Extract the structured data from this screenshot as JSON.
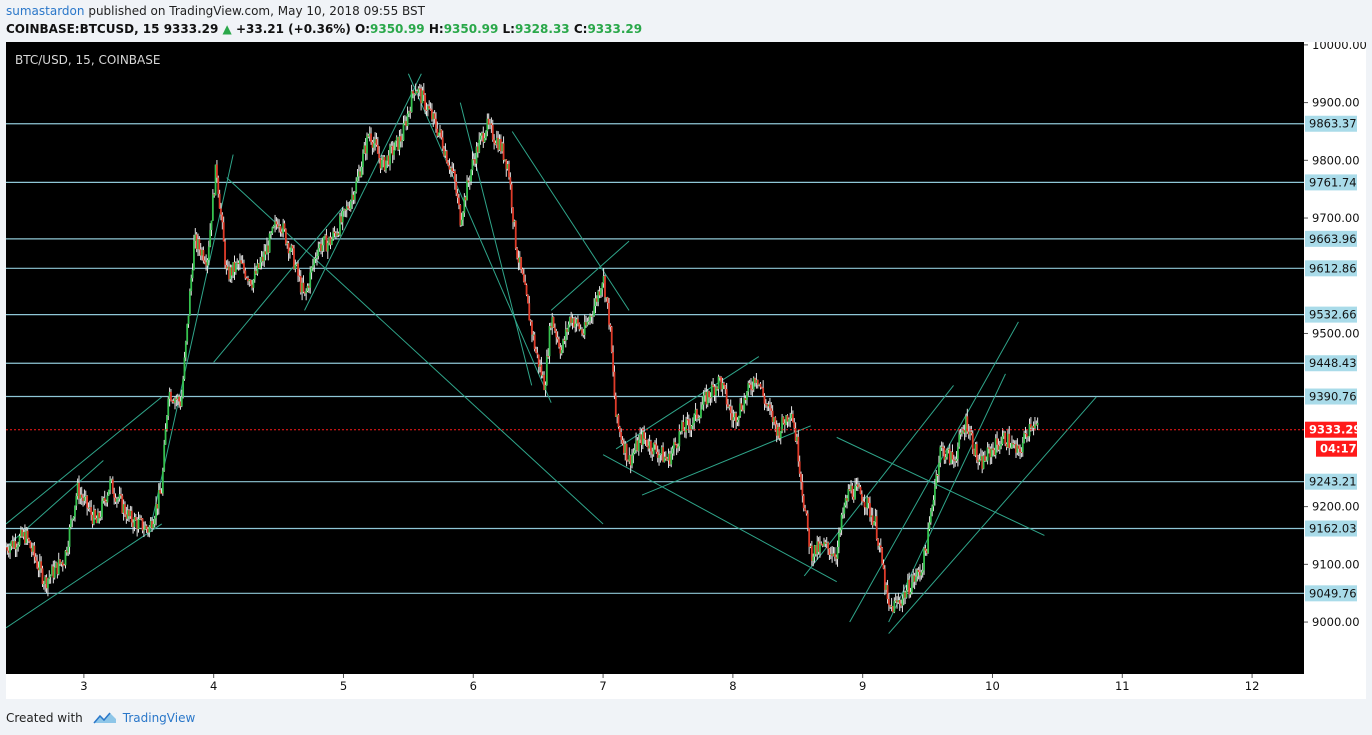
{
  "header": {
    "author": "sumastardon",
    "published_text": "published on TradingView.com, May 10, 2018 09:55 BST",
    "symbol": "COINBASE:BTCUSD, 15",
    "last": "9333.29",
    "change": "+33.21 (+0.36%)",
    "o_label": "O:",
    "o_value": "9350.99",
    "h_label": "H:",
    "h_value": "9350.99",
    "l_label": "L:",
    "l_value": "9328.33",
    "c_label": "C:",
    "c_value": "9333.29"
  },
  "footer": {
    "created_with": "Created with",
    "brand": "TradingView"
  },
  "colors": {
    "background": "#000000",
    "up": "#36c24f",
    "down": "#e03c2a",
    "level_line": "#8fc7d6",
    "level_label_bg": "#a9dbe9",
    "trend_line": "#2fa58a",
    "current_price": "#ff1a1a"
  },
  "chart_data": {
    "type": "candlestick",
    "chart_title": "BTC/USD, 15, COINBASE",
    "x_ticks": [
      "3",
      "4",
      "5",
      "6",
      "7",
      "8",
      "9",
      "10",
      "11",
      "12"
    ],
    "y_ticks": [
      "10000.00",
      "9900.00",
      "9800.00",
      "9700.00",
      "9500.00",
      "9200.00",
      "9100.00",
      "9000.00"
    ],
    "ylim": [
      8910,
      10005
    ],
    "xlim": [
      2.4,
      12.4
    ],
    "grid": false,
    "horizontal_levels": [
      {
        "label": "9863.37",
        "value": 9863.37
      },
      {
        "label": "9761.74",
        "value": 9761.74
      },
      {
        "label": "9663.96",
        "value": 9663.96
      },
      {
        "label": "9612.86",
        "value": 9612.86
      },
      {
        "label": "9532.66",
        "value": 9532.66
      },
      {
        "label": "9448.43",
        "value": 9448.43
      },
      {
        "label": "9390.76",
        "value": 9390.76
      },
      {
        "label": "9243.21",
        "value": 9243.21
      },
      {
        "label": "9162.03",
        "value": 9162.03
      },
      {
        "label": "9049.76",
        "value": 9049.76
      }
    ],
    "current_price": {
      "label": "9333.29",
      "value": 9333.29,
      "countdown": "04:17"
    },
    "price_path": [
      [
        2.4,
        9130
      ],
      [
        2.55,
        9150
      ],
      [
        2.7,
        9070
      ],
      [
        2.85,
        9110
      ],
      [
        2.95,
        9230
      ],
      [
        3.1,
        9170
      ],
      [
        3.2,
        9240
      ],
      [
        3.35,
        9180
      ],
      [
        3.5,
        9160
      ],
      [
        3.6,
        9230
      ],
      [
        3.65,
        9400
      ],
      [
        3.75,
        9380
      ],
      [
        3.85,
        9660
      ],
      [
        3.95,
        9630
      ],
      [
        4.02,
        9790
      ],
      [
        4.1,
        9600
      ],
      [
        4.2,
        9620
      ],
      [
        4.3,
        9590
      ],
      [
        4.4,
        9640
      ],
      [
        4.5,
        9700
      ],
      [
        4.6,
        9640
      ],
      [
        4.7,
        9560
      ],
      [
        4.8,
        9650
      ],
      [
        4.9,
        9660
      ],
      [
        5.0,
        9700
      ],
      [
        5.1,
        9760
      ],
      [
        5.2,
        9850
      ],
      [
        5.3,
        9790
      ],
      [
        5.45,
        9840
      ],
      [
        5.55,
        9930
      ],
      [
        5.65,
        9890
      ],
      [
        5.75,
        9840
      ],
      [
        5.85,
        9770
      ],
      [
        5.9,
        9700
      ],
      [
        6.0,
        9800
      ],
      [
        6.1,
        9860
      ],
      [
        6.2,
        9830
      ],
      [
        6.27,
        9790
      ],
      [
        6.33,
        9650
      ],
      [
        6.4,
        9570
      ],
      [
        6.48,
        9470
      ],
      [
        6.55,
        9410
      ],
      [
        6.6,
        9530
      ],
      [
        6.68,
        9470
      ],
      [
        6.75,
        9530
      ],
      [
        6.85,
        9500
      ],
      [
        6.95,
        9560
      ],
      [
        7.0,
        9600
      ],
      [
        7.05,
        9520
      ],
      [
        7.1,
        9350
      ],
      [
        7.2,
        9280
      ],
      [
        7.3,
        9320
      ],
      [
        7.4,
        9300
      ],
      [
        7.5,
        9280
      ],
      [
        7.6,
        9330
      ],
      [
        7.7,
        9350
      ],
      [
        7.8,
        9390
      ],
      [
        7.9,
        9420
      ],
      [
        8.0,
        9350
      ],
      [
        8.1,
        9390
      ],
      [
        8.18,
        9430
      ],
      [
        8.25,
        9380
      ],
      [
        8.35,
        9330
      ],
      [
        8.45,
        9370
      ],
      [
        8.5,
        9300
      ],
      [
        8.55,
        9200
      ],
      [
        8.6,
        9120
      ],
      [
        8.7,
        9130
      ],
      [
        8.8,
        9120
      ],
      [
        8.85,
        9190
      ],
      [
        8.9,
        9230
      ],
      [
        9.0,
        9220
      ],
      [
        9.1,
        9170
      ],
      [
        9.15,
        9100
      ],
      [
        9.2,
        9020
      ],
      [
        9.3,
        9040
      ],
      [
        9.35,
        9060
      ],
      [
        9.45,
        9090
      ],
      [
        9.5,
        9140
      ],
      [
        9.55,
        9230
      ],
      [
        9.6,
        9300
      ],
      [
        9.7,
        9280
      ],
      [
        9.8,
        9350
      ],
      [
        9.9,
        9270
      ],
      [
        10.0,
        9300
      ],
      [
        10.1,
        9320
      ],
      [
        10.2,
        9290
      ],
      [
        10.3,
        9350
      ],
      [
        10.35,
        9333.29
      ]
    ],
    "trend_lines": [
      [
        [
          2.4,
          8990
        ],
        [
          3.6,
          9170
        ]
      ],
      [
        [
          2.4,
          9170
        ],
        [
          3.6,
          9390
        ]
      ],
      [
        [
          2.4,
          9130
        ],
        [
          3.15,
          9280
        ]
      ],
      [
        [
          3.5,
          9150
        ],
        [
          4.15,
          9810
        ]
      ],
      [
        [
          4.0,
          9450
        ],
        [
          5.0,
          9720
        ]
      ],
      [
        [
          4.1,
          9770
        ],
        [
          7.0,
          9170
        ]
      ],
      [
        [
          4.7,
          9540
        ],
        [
          5.6,
          9950
        ]
      ],
      [
        [
          5.5,
          9950
        ],
        [
          6.6,
          9380
        ]
      ],
      [
        [
          5.9,
          9900
        ],
        [
          6.45,
          9410
        ]
      ],
      [
        [
          6.3,
          9850
        ],
        [
          7.2,
          9540
        ]
      ],
      [
        [
          6.6,
          9540
        ],
        [
          7.2,
          9660
        ]
      ],
      [
        [
          7.1,
          9300
        ],
        [
          8.2,
          9460
        ]
      ],
      [
        [
          7.3,
          9220
        ],
        [
          8.6,
          9340
        ]
      ],
      [
        [
          7.0,
          9290
        ],
        [
          8.8,
          9070
        ]
      ],
      [
        [
          8.55,
          9080
        ],
        [
          9.7,
          9410
        ]
      ],
      [
        [
          8.8,
          9320
        ],
        [
          10.4,
          9150
        ]
      ],
      [
        [
          8.9,
          9000
        ],
        [
          10.2,
          9520
        ]
      ],
      [
        [
          9.2,
          8980
        ],
        [
          10.8,
          9390
        ]
      ],
      [
        [
          9.2,
          9000
        ],
        [
          10.1,
          9430
        ]
      ]
    ]
  }
}
